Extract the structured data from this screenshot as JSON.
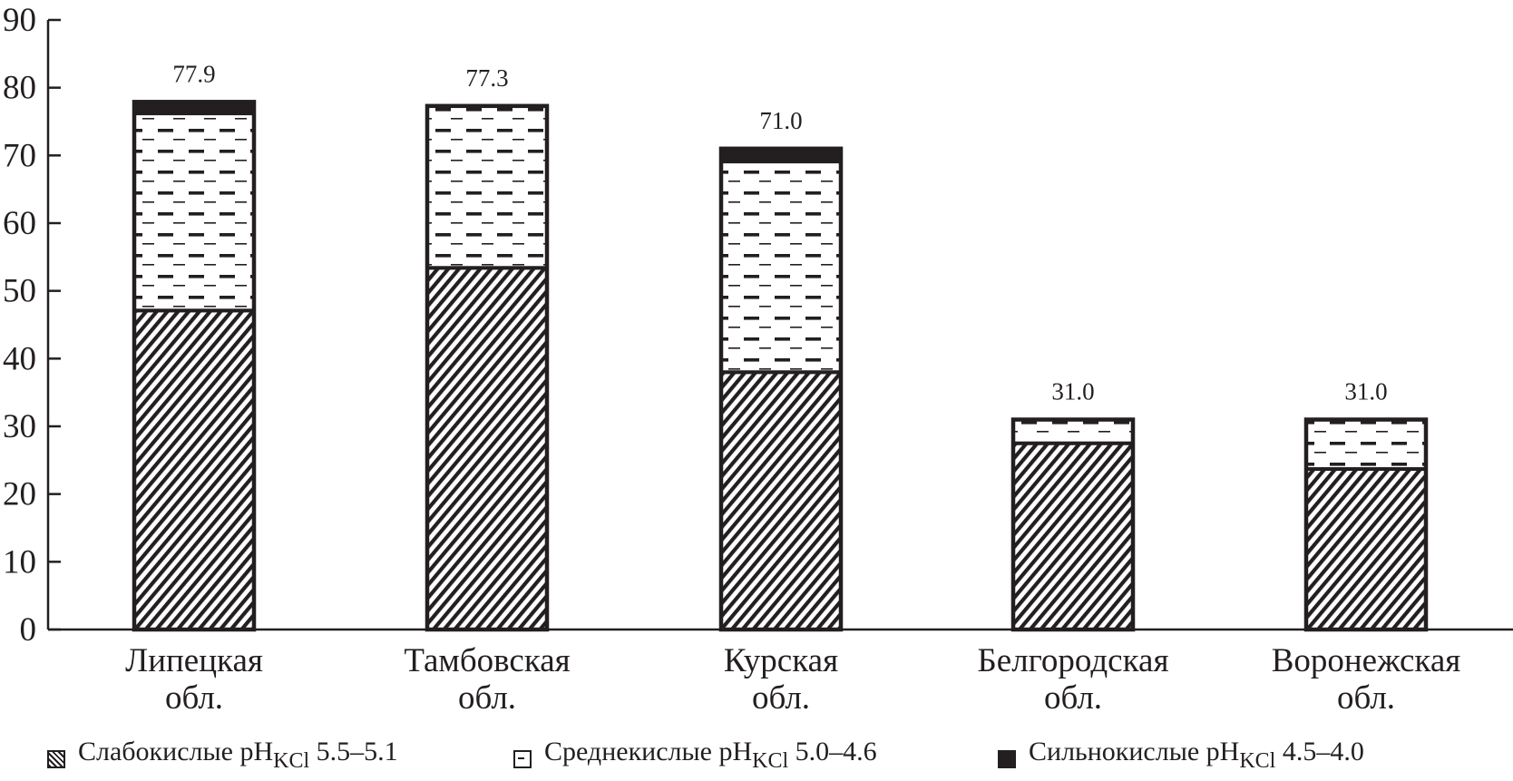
{
  "chart_data": {
    "type": "bar",
    "stacked": true,
    "title": "",
    "xlabel": "",
    "ylabel": "",
    "ylim": [
      0,
      90
    ],
    "yticks": [
      0,
      10,
      20,
      30,
      40,
      50,
      60,
      70,
      80,
      90
    ],
    "grid": false,
    "legend_position": "bottom",
    "categories": [
      [
        "Липецкая",
        "обл."
      ],
      [
        "Тамбовская",
        "обл."
      ],
      [
        "Курская",
        "обл."
      ],
      [
        "Белгородская",
        "обл."
      ],
      [
        "Воронежская",
        "обл."
      ]
    ],
    "totals": [
      77.9,
      77.3,
      71.0,
      31.0,
      31.0
    ],
    "total_labels": [
      "77.9",
      "77.3",
      "71.0",
      "31.0",
      "31.0"
    ],
    "series": [
      {
        "name": "Слабокислые pH_KCl 5.5–5.1",
        "pattern": "diagonal-hatch",
        "values": [
          47.1,
          53.4,
          38.0,
          27.5,
          23.7
        ]
      },
      {
        "name": "Среднекислые pH_KCl 5.0–4.6",
        "pattern": "dashes",
        "values": [
          29.1,
          23.9,
          31.1,
          3.5,
          7.3
        ]
      },
      {
        "name": "Сильнокислые pH_KCl 4.5–4.0",
        "pattern": "solid-black",
        "values": [
          1.7,
          0,
          1.9,
          0,
          0
        ]
      }
    ],
    "colors": {
      "ink": "#231f20",
      "background": "#ffffff"
    }
  },
  "legend": [
    {
      "prefix": "Слабокислые pH",
      "sub": "KCl",
      "suffix": " 5.5–5.1"
    },
    {
      "prefix": "Среднекислые pH",
      "sub": "KCl",
      "suffix": " 5.0–4.6"
    },
    {
      "prefix": "Сильнокислые pH",
      "sub": "KCl",
      "suffix": " 4.5–4.0"
    }
  ]
}
